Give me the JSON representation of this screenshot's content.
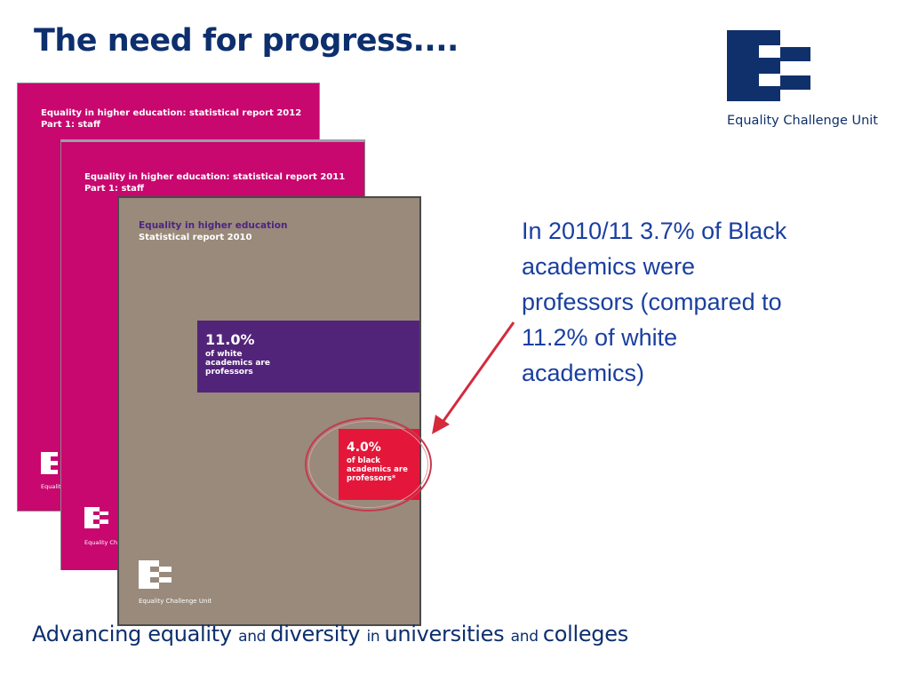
{
  "slide": {
    "title": "The need for progress....",
    "logo_text": "Equality Challenge Unit",
    "callout": "In 2010/11 3.7% of Black\nacademics were\nprofessors (compared to\n11.2% of white\nacademics)",
    "tagline": [
      {
        "text": "Advancing equality ",
        "size": "big"
      },
      {
        "text": "and ",
        "size": "small"
      },
      {
        "text": "diversity ",
        "size": "big"
      },
      {
        "text": "in ",
        "size": "small"
      },
      {
        "text": "universities ",
        "size": "big"
      },
      {
        "text": "and ",
        "size": "small"
      },
      {
        "text": "colleges",
        "size": "big"
      }
    ]
  },
  "covers": {
    "r2012": {
      "title": "Equality in higher education: statistical report 2012",
      "subtitle": "Part 1: staff",
      "logo_caption": "Equality"
    },
    "r2011": {
      "title": "Equality in higher education: statistical report 2011",
      "subtitle": "Part 1: staff",
      "logo_caption": "Equality Chal"
    },
    "r2010": {
      "title": "Equality in higher education",
      "subtitle": "Statistical report 2010",
      "logo_caption": "Equality Challenge Unit",
      "white_stat": {
        "value": "11.0%",
        "label": "of white\nacademics are\nprofessors"
      },
      "black_stat": {
        "value": "4.0%",
        "label": "of black\nacademics are\nprofessors*"
      }
    }
  },
  "colors": {
    "navy": "#0d2f6e",
    "magenta": "#c8076f",
    "taupe": "#998a7b",
    "purple": "#522479",
    "red": "#e4173a",
    "callout_blue": "#1a3fa0"
  },
  "icons": [
    "ecu-logo-icon",
    "arrow-icon"
  ]
}
